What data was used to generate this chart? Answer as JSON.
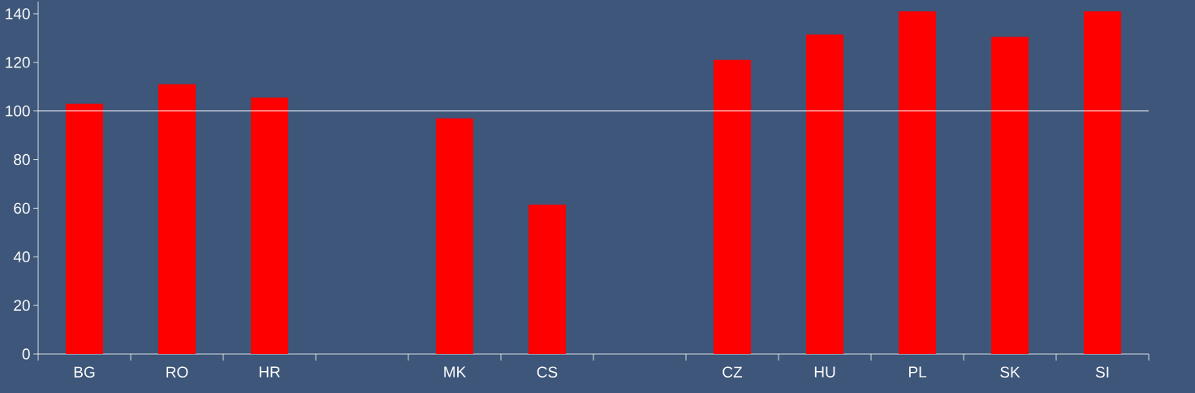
{
  "chart_data": {
    "type": "bar",
    "categories": [
      "BG",
      "RO",
      "HR",
      null,
      "MK",
      "CS",
      null,
      "CZ",
      "HU",
      "PL",
      "SK",
      "SI"
    ],
    "values": [
      103,
      111,
      105.5,
      null,
      97,
      61.5,
      null,
      121,
      131.5,
      141,
      130.5,
      141
    ],
    "color": "#ff0000",
    "ylim": [
      0,
      145
    ],
    "yticks": [
      0,
      20,
      40,
      60,
      80,
      100,
      120,
      140
    ],
    "grid": false,
    "ref_lines": [
      {
        "axis": "y",
        "value": 100,
        "color": "#ffffff"
      }
    ]
  }
}
